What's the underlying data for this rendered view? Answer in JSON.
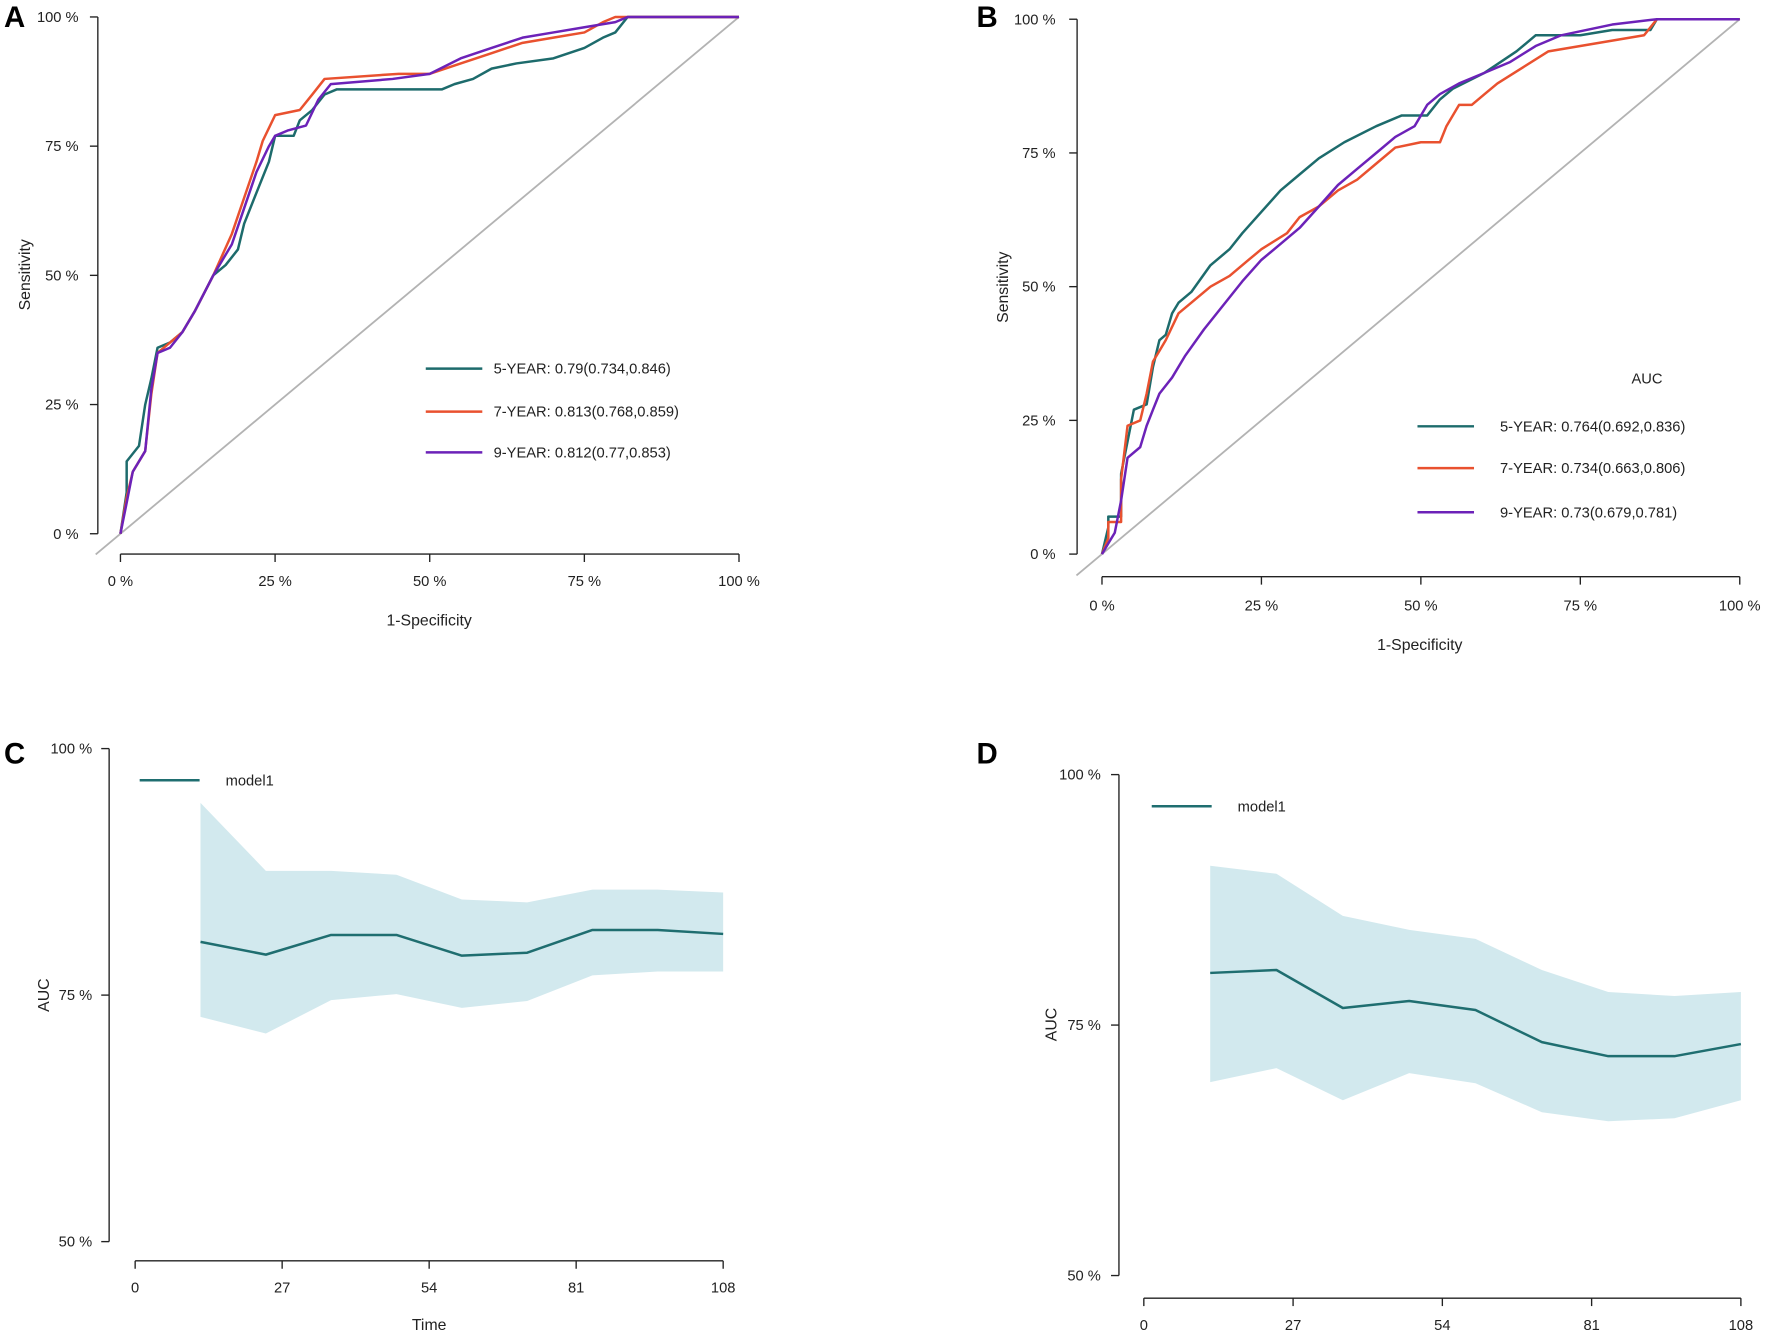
{
  "chart_data": [
    {
      "panel": "A",
      "type": "line",
      "title": "",
      "xlabel": "1-Specificity",
      "ylabel": "Sensitivity",
      "xlim": [
        0,
        100
      ],
      "ylim": [
        0,
        100
      ],
      "x_ticks": [
        0,
        25,
        50,
        75,
        100
      ],
      "x_tick_labels": [
        "0 %",
        "25 %",
        "50 %",
        "75 %",
        "100 %"
      ],
      "y_ticks": [
        0,
        25,
        50,
        75,
        100
      ],
      "y_tick_labels": [
        "0 %",
        "25 %",
        "50 %",
        "75 %",
        "100 %"
      ],
      "chance_line": true,
      "legend_title": "",
      "series": [
        {
          "label": "5-YEAR: 0.79(0.734,0.846)",
          "auc": 0.79,
          "ci": [
            0.734,
            0.846
          ],
          "color": "#1d6b6c",
          "points": [
            [
              0,
              0
            ],
            [
              1,
              8
            ],
            [
              1,
              14
            ],
            [
              3,
              17
            ],
            [
              4,
              25
            ],
            [
              5,
              30
            ],
            [
              6,
              36
            ],
            [
              8,
              37
            ],
            [
              10,
              39
            ],
            [
              12,
              43
            ],
            [
              15,
              50
            ],
            [
              17,
              52
            ],
            [
              19,
              55
            ],
            [
              20,
              60
            ],
            [
              22,
              66
            ],
            [
              24,
              72
            ],
            [
              25,
              77
            ],
            [
              28,
              77
            ],
            [
              29,
              80
            ],
            [
              31,
              82
            ],
            [
              33,
              85
            ],
            [
              35,
              86
            ],
            [
              46,
              86
            ],
            [
              52,
              86
            ],
            [
              54,
              87
            ],
            [
              57,
              88
            ],
            [
              60,
              90
            ],
            [
              64,
              91
            ],
            [
              70,
              92
            ],
            [
              75,
              94
            ],
            [
              78,
              96
            ],
            [
              80,
              97
            ],
            [
              82,
              100
            ],
            [
              100,
              100
            ]
          ]
        },
        {
          "label": "7-YEAR: 0.813(0.768,0.859)",
          "auc": 0.813,
          "ci": [
            0.768,
            0.859
          ],
          "color": "#e9512f",
          "points": [
            [
              0,
              0
            ],
            [
              1,
              7
            ],
            [
              2,
              12
            ],
            [
              4,
              16
            ],
            [
              5,
              27
            ],
            [
              6,
              35
            ],
            [
              8,
              37
            ],
            [
              10,
              39
            ],
            [
              12,
              43
            ],
            [
              15,
              50
            ],
            [
              18,
              58
            ],
            [
              20,
              65
            ],
            [
              22,
              72
            ],
            [
              23,
              76
            ],
            [
              25,
              81
            ],
            [
              29,
              82
            ],
            [
              31,
              85
            ],
            [
              33,
              88
            ],
            [
              45,
              89
            ],
            [
              50,
              89
            ],
            [
              55,
              91
            ],
            [
              60,
              93
            ],
            [
              65,
              95
            ],
            [
              70,
              96
            ],
            [
              75,
              97
            ],
            [
              78,
              99
            ],
            [
              80,
              100
            ],
            [
              100,
              100
            ]
          ]
        },
        {
          "label": "9-YEAR: 0.812(0.77,0.853)",
          "auc": 0.812,
          "ci": [
            0.77,
            0.853
          ],
          "color": "#6c22b8",
          "points": [
            [
              0,
              0
            ],
            [
              1,
              6
            ],
            [
              2,
              12
            ],
            [
              4,
              16
            ],
            [
              5,
              28
            ],
            [
              6,
              35
            ],
            [
              8,
              36
            ],
            [
              10,
              39
            ],
            [
              12,
              43
            ],
            [
              15,
              50
            ],
            [
              18,
              56
            ],
            [
              20,
              63
            ],
            [
              22,
              70
            ],
            [
              24,
              75
            ],
            [
              25,
              77
            ],
            [
              27,
              78
            ],
            [
              30,
              79
            ],
            [
              32,
              84
            ],
            [
              34,
              87
            ],
            [
              44,
              88
            ],
            [
              50,
              89
            ],
            [
              55,
              92
            ],
            [
              60,
              94
            ],
            [
              65,
              96
            ],
            [
              70,
              97
            ],
            [
              75,
              98
            ],
            [
              80,
              99
            ],
            [
              82,
              100
            ],
            [
              100,
              100
            ]
          ]
        }
      ]
    },
    {
      "panel": "B",
      "type": "line",
      "title": "",
      "xlabel": "1-Specificity",
      "ylabel": "Sensitivity",
      "xlim": [
        0,
        100
      ],
      "ylim": [
        0,
        100
      ],
      "x_ticks": [
        0,
        25,
        50,
        75,
        100
      ],
      "x_tick_labels": [
        "0 %",
        "25 %",
        "50 %",
        "75 %",
        "100 %"
      ],
      "y_ticks": [
        0,
        25,
        50,
        75,
        100
      ],
      "y_tick_labels": [
        "0 %",
        "25 %",
        "50 %",
        "75 %",
        "100 %"
      ],
      "chance_line": true,
      "legend_title": "AUC",
      "series": [
        {
          "label": "5-YEAR: 0.764(0.692,0.836)",
          "auc": 0.764,
          "ci": [
            0.692,
            0.836
          ],
          "color": "#1d6b6c",
          "points": [
            [
              0,
              0
            ],
            [
              1,
              5
            ],
            [
              1,
              7
            ],
            [
              3,
              7
            ],
            [
              3,
              15
            ],
            [
              5,
              27
            ],
            [
              7,
              28
            ],
            [
              8,
              35
            ],
            [
              9,
              40
            ],
            [
              10,
              41
            ],
            [
              11,
              45
            ],
            [
              12,
              47
            ],
            [
              14,
              49
            ],
            [
              17,
              54
            ],
            [
              20,
              57
            ],
            [
              22,
              60
            ],
            [
              25,
              64
            ],
            [
              28,
              68
            ],
            [
              31,
              71
            ],
            [
              34,
              74
            ],
            [
              38,
              77
            ],
            [
              43,
              80
            ],
            [
              47,
              82
            ],
            [
              51,
              82
            ],
            [
              53,
              85
            ],
            [
              55,
              87
            ],
            [
              60,
              90
            ],
            [
              65,
              94
            ],
            [
              68,
              97
            ],
            [
              75,
              97
            ],
            [
              80,
              98
            ],
            [
              86,
              98
            ],
            [
              87,
              100
            ],
            [
              100,
              100
            ]
          ]
        },
        {
          "label": "7-YEAR: 0.734(0.663,0.806)",
          "auc": 0.734,
          "ci": [
            0.663,
            0.806
          ],
          "color": "#e9512f",
          "points": [
            [
              0,
              0
            ],
            [
              1,
              3
            ],
            [
              1,
              6
            ],
            [
              3,
              6
            ],
            [
              3,
              14
            ],
            [
              4,
              24
            ],
            [
              6,
              25
            ],
            [
              7,
              30
            ],
            [
              8,
              36
            ],
            [
              9,
              38
            ],
            [
              10,
              40
            ],
            [
              12,
              45
            ],
            [
              14,
              47
            ],
            [
              17,
              50
            ],
            [
              20,
              52
            ],
            [
              23,
              55
            ],
            [
              25,
              57
            ],
            [
              29,
              60
            ],
            [
              31,
              63
            ],
            [
              34,
              65
            ],
            [
              37,
              68
            ],
            [
              40,
              70
            ],
            [
              43,
              73
            ],
            [
              46,
              76
            ],
            [
              50,
              77
            ],
            [
              53,
              77
            ],
            [
              54,
              80
            ],
            [
              56,
              84
            ],
            [
              58,
              84
            ],
            [
              60,
              86
            ],
            [
              62,
              88
            ],
            [
              66,
              91
            ],
            [
              70,
              94
            ],
            [
              75,
              95
            ],
            [
              80,
              96
            ],
            [
              85,
              97
            ],
            [
              87,
              100
            ],
            [
              100,
              100
            ]
          ]
        },
        {
          "label": "9-YEAR: 0.73(0.679,0.781)",
          "auc": 0.73,
          "ci": [
            0.679,
            0.781
          ],
          "color": "#6c22b8",
          "points": [
            [
              0,
              0
            ],
            [
              1,
              2
            ],
            [
              2,
              4
            ],
            [
              3,
              10
            ],
            [
              4,
              18
            ],
            [
              6,
              20
            ],
            [
              7,
              24
            ],
            [
              8,
              27
            ],
            [
              9,
              30
            ],
            [
              11,
              33
            ],
            [
              13,
              37
            ],
            [
              16,
              42
            ],
            [
              18,
              45
            ],
            [
              20,
              48
            ],
            [
              22,
              51
            ],
            [
              25,
              55
            ],
            [
              28,
              58
            ],
            [
              31,
              61
            ],
            [
              34,
              65
            ],
            [
              37,
              69
            ],
            [
              40,
              72
            ],
            [
              43,
              75
            ],
            [
              46,
              78
            ],
            [
              49,
              80
            ],
            [
              51,
              84
            ],
            [
              53,
              86
            ],
            [
              56,
              88
            ],
            [
              60,
              90
            ],
            [
              64,
              92
            ],
            [
              68,
              95
            ],
            [
              72,
              97
            ],
            [
              76,
              98
            ],
            [
              80,
              99
            ],
            [
              87,
              100
            ],
            [
              100,
              100
            ]
          ]
        }
      ]
    },
    {
      "panel": "C",
      "type": "line",
      "title": "",
      "xlabel": "Time",
      "ylabel": "AUC",
      "xlim": [
        0,
        108
      ],
      "ylim": [
        50,
        100
      ],
      "x_ticks": [
        0,
        27,
        54,
        81,
        108
      ],
      "x_tick_labels": [
        "0",
        "27",
        "54",
        "81",
        "108"
      ],
      "y_ticks": [
        50,
        75,
        100
      ],
      "y_tick_labels": [
        "50 %",
        "75 %",
        "100 %"
      ],
      "series": [
        {
          "name": "model1",
          "color": "#1f6e70",
          "band_color": "#d2e9ee",
          "time": [
            12,
            24,
            36,
            48,
            60,
            72,
            84,
            96,
            108
          ],
          "auc": [
            80.4,
            79.1,
            81.1,
            81.1,
            79.0,
            79.3,
            81.6,
            81.6,
            81.2
          ],
          "lower": [
            72.8,
            71.1,
            74.5,
            75.1,
            73.7,
            74.4,
            77.0,
            77.4,
            77.4
          ],
          "upper": [
            94.5,
            87.6,
            87.6,
            87.2,
            84.7,
            84.4,
            85.7,
            85.7,
            85.4
          ]
        }
      ]
    },
    {
      "panel": "D",
      "type": "line",
      "title": "",
      "xlabel": "",
      "ylabel": "AUC",
      "xlim": [
        0,
        108
      ],
      "ylim": [
        50,
        100
      ],
      "x_ticks": [
        0,
        27,
        54,
        81,
        108
      ],
      "x_tick_labels": [
        "0",
        "27",
        "54",
        "81",
        "108"
      ],
      "y_ticks": [
        50,
        75,
        100
      ],
      "y_tick_labels": [
        "50 %",
        "75 %",
        "100 %"
      ],
      "series": [
        {
          "name": "model1",
          "color": "#1f6e70",
          "band_color": "#d2e9ee",
          "time": [
            12,
            24,
            36,
            48,
            60,
            72,
            84,
            96,
            108
          ],
          "auc": [
            80.2,
            80.5,
            76.7,
            77.4,
            76.5,
            73.3,
            71.9,
            71.9,
            73.1
          ],
          "lower": [
            69.3,
            70.7,
            67.5,
            70.2,
            69.2,
            66.3,
            65.4,
            65.7,
            67.5
          ],
          "upper": [
            90.9,
            90.1,
            85.9,
            84.5,
            83.6,
            80.5,
            78.3,
            77.9,
            78.3
          ]
        }
      ]
    }
  ]
}
